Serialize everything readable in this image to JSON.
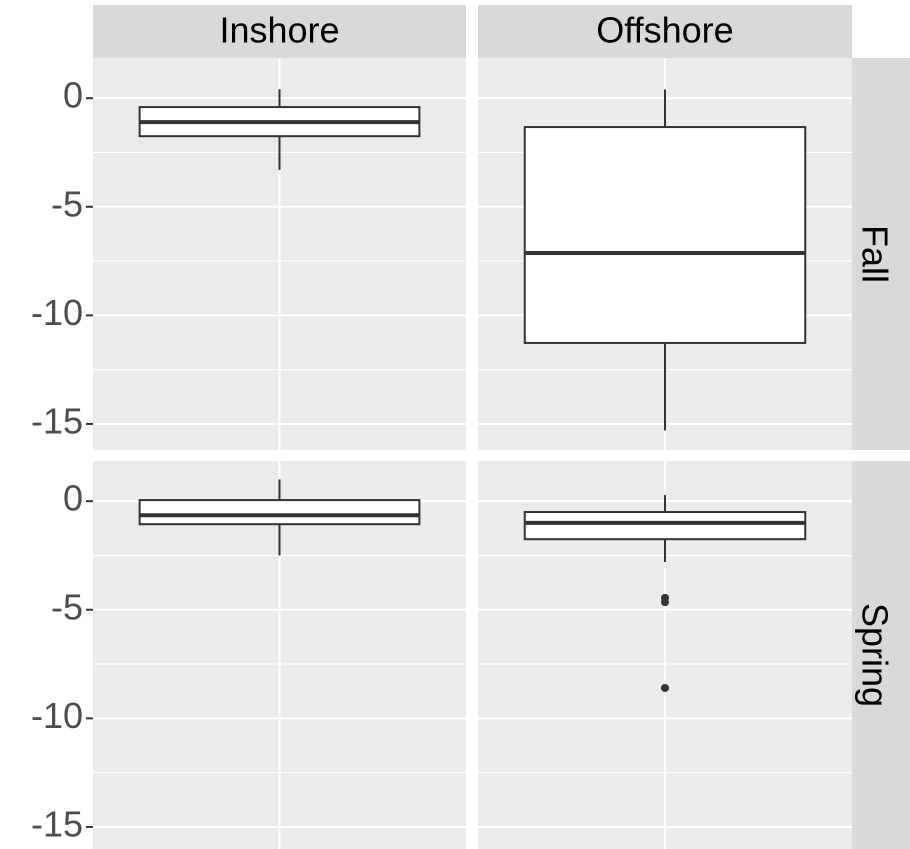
{
  "chart_data": {
    "type": "box",
    "columns": [
      "Inshore",
      "Offshore"
    ],
    "rows": [
      "Fall",
      "Spring"
    ],
    "ylim": [
      -16.2,
      1.85
    ],
    "yticks": [
      -15,
      -10,
      -5,
      0
    ],
    "minor_yticks": [
      -12.5,
      -7.5,
      -2.5
    ],
    "grid": true,
    "panel_color": "#ebebeb",
    "strip_color": "#d9d9d9",
    "box_color": "#ffffff",
    "line_color": "#333333",
    "panels": [
      [
        {
          "whisker_high": 0.41,
          "q3": -0.41,
          "median": -1.1,
          "q1": -1.75,
          "whisker_low": -3.3,
          "outliers": []
        },
        {
          "whisker_high": 0.4,
          "q3": -1.33,
          "median": -7.13,
          "q1": -11.27,
          "whisker_low": -15.3,
          "outliers": []
        }
      ],
      [
        {
          "whisker_high": 1.0,
          "q3": 0.05,
          "median": -0.65,
          "q1": -1.06,
          "whisker_low": -2.5,
          "outliers": []
        },
        {
          "whisker_high": 0.28,
          "q3": -0.5,
          "median": -1.0,
          "q1": -1.75,
          "whisker_low": -2.8,
          "outliers": [
            -4.45,
            -4.65,
            -8.6
          ]
        }
      ]
    ]
  }
}
